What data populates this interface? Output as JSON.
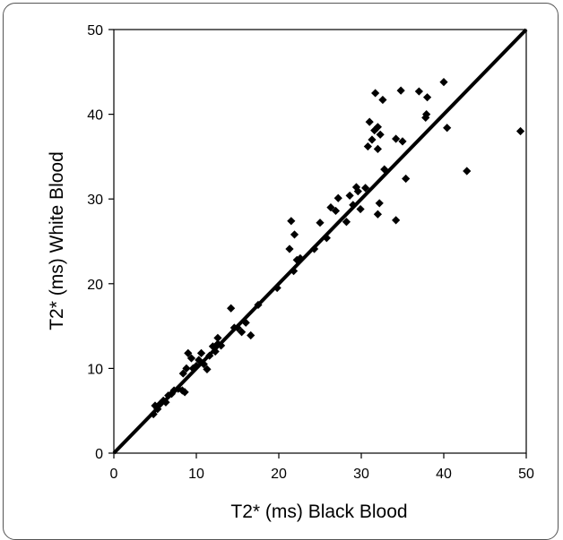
{
  "chart_data": {
    "type": "scatter",
    "title": "",
    "xlabel": "T2* (ms) Black Blood",
    "ylabel": "T2* (ms) White Blood",
    "xlim": [
      0,
      50
    ],
    "ylim": [
      0,
      50
    ],
    "xticks": [
      "0",
      "10",
      "20",
      "30",
      "40",
      "50"
    ],
    "yticks": [
      "0",
      "10",
      "20",
      "30",
      "40",
      "50"
    ],
    "grid": false,
    "legend": "none",
    "marker": "diamond",
    "marker_color": "#000000",
    "reference_line": {
      "x": [
        0,
        50
      ],
      "y": [
        0,
        50
      ]
    },
    "series": [
      {
        "points": [
          [
            4.8,
            4.6
          ],
          [
            5.0,
            5.6
          ],
          [
            5.3,
            5.2
          ],
          [
            5.6,
            5.8
          ],
          [
            6.0,
            6.2
          ],
          [
            6.3,
            6.0
          ],
          [
            6.6,
            6.8
          ],
          [
            7.0,
            7.0
          ],
          [
            7.3,
            7.4
          ],
          [
            7.8,
            7.6
          ],
          [
            8.3,
            7.4
          ],
          [
            8.6,
            7.2
          ],
          [
            8.4,
            9.4
          ],
          [
            8.8,
            10.0
          ],
          [
            9.0,
            11.8
          ],
          [
            9.4,
            11.2
          ],
          [
            9.6,
            10.0
          ],
          [
            10.0,
            10.3
          ],
          [
            10.3,
            11.0
          ],
          [
            10.6,
            11.8
          ],
          [
            10.9,
            10.5
          ],
          [
            11.3,
            9.9
          ],
          [
            11.6,
            11.5
          ],
          [
            12.0,
            12.6
          ],
          [
            12.3,
            12.0
          ],
          [
            12.6,
            13.6
          ],
          [
            12.6,
            12.9
          ],
          [
            13.0,
            12.7
          ],
          [
            14.2,
            17.1
          ],
          [
            14.6,
            14.8
          ],
          [
            15.0,
            14.8
          ],
          [
            15.5,
            14.3
          ],
          [
            16.0,
            15.4
          ],
          [
            16.6,
            13.9
          ],
          [
            17.5,
            17.5
          ],
          [
            19.8,
            19.5
          ],
          [
            21.3,
            24.1
          ],
          [
            21.5,
            27.4
          ],
          [
            21.9,
            25.8
          ],
          [
            21.8,
            21.5
          ],
          [
            22.2,
            22.8
          ],
          [
            22.6,
            23.0
          ],
          [
            24.3,
            24.1
          ],
          [
            25.0,
            27.2
          ],
          [
            25.8,
            25.4
          ],
          [
            26.3,
            29.0
          ],
          [
            26.9,
            28.6
          ],
          [
            27.2,
            30.1
          ],
          [
            28.2,
            27.3
          ],
          [
            28.6,
            30.4
          ],
          [
            29.0,
            29.3
          ],
          [
            29.4,
            31.4
          ],
          [
            29.6,
            30.9
          ],
          [
            29.9,
            28.8
          ],
          [
            30.5,
            31.3
          ],
          [
            30.8,
            36.2
          ],
          [
            31.0,
            39.1
          ],
          [
            31.3,
            37.0
          ],
          [
            31.7,
            42.5
          ],
          [
            31.6,
            38.1
          ],
          [
            32.0,
            38.5
          ],
          [
            32.3,
            37.6
          ],
          [
            32.0,
            35.9
          ],
          [
            32.2,
            29.5
          ],
          [
            32.0,
            28.2
          ],
          [
            32.6,
            41.7
          ],
          [
            32.8,
            33.5
          ],
          [
            34.2,
            37.1
          ],
          [
            34.2,
            27.5
          ],
          [
            34.8,
            42.8
          ],
          [
            35.0,
            36.8
          ],
          [
            35.4,
            32.4
          ],
          [
            37.0,
            42.7
          ],
          [
            37.9,
            40.0
          ],
          [
            37.8,
            39.6
          ],
          [
            38.0,
            42.0
          ],
          [
            40.0,
            43.8
          ],
          [
            40.4,
            38.4
          ],
          [
            42.8,
            33.3
          ],
          [
            49.3,
            38.0
          ]
        ]
      }
    ]
  }
}
